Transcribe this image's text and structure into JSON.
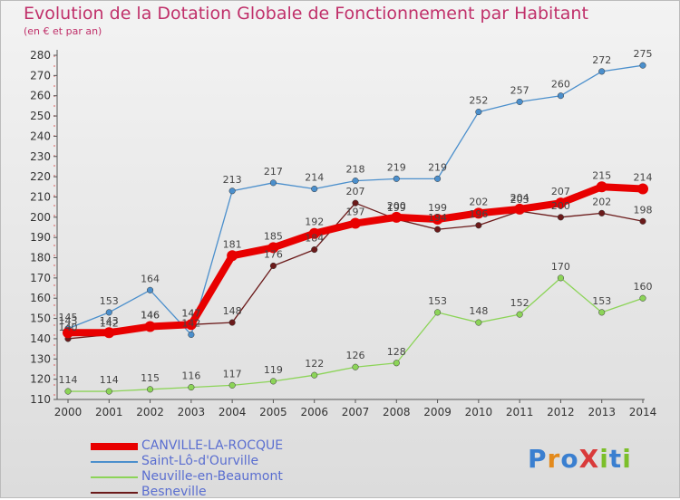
{
  "header": {
    "title": "Evolution de la Dotation Globale de Fonctionnement par Habitant",
    "subtitle": "(en € et par an)"
  },
  "logo": {
    "text": "ProXiti",
    "colors": [
      "#3a7fd0",
      "#e38a1c",
      "#3a7fd0",
      "#d93a3a",
      "#7cbf2a",
      "#3a7fd0",
      "#7cbf2a"
    ]
  },
  "chart_data": {
    "type": "line",
    "title": "Evolution de la Dotation Globale de Fonctionnement par Habitant",
    "subtitle": "(en € et par an)",
    "x": [
      "2000",
      "2001",
      "2002",
      "2003",
      "2004",
      "2005",
      "2006",
      "2007",
      "2008",
      "2009",
      "2010",
      "2011",
      "2012",
      "2013",
      "2014"
    ],
    "ylim": [
      110,
      280
    ],
    "yticks": [
      110,
      120,
      130,
      140,
      150,
      160,
      170,
      180,
      190,
      200,
      210,
      220,
      230,
      240,
      250,
      260,
      270,
      280
    ],
    "grid": false,
    "legend_position": "bottom-left",
    "series": [
      {
        "name": "CANVILLE-LA-ROCQUE",
        "color": "#e80000",
        "values": [
          143,
          143,
          146,
          147,
          181,
          185,
          192,
          197,
          200,
          199,
          202,
          204,
          207,
          215,
          214
        ]
      },
      {
        "name": "Saint-Lô-d'Ourville",
        "color": "#4b8fcc",
        "values": [
          145,
          153,
          164,
          142,
          213,
          217,
          214,
          218,
          219,
          219,
          252,
          257,
          260,
          272,
          275
        ]
      },
      {
        "name": "Neuville-en-Beaumont",
        "color": "#8cd458",
        "values": [
          114,
          114,
          115,
          116,
          117,
          119,
          122,
          126,
          128,
          153,
          148,
          152,
          170,
          153,
          160
        ]
      },
      {
        "name": "Besneville",
        "color": "#6b1a1a",
        "values": [
          140,
          142,
          146,
          147,
          148,
          176,
          184,
          207,
          199,
          194,
          196,
          203,
          200,
          202,
          198
        ]
      }
    ]
  }
}
